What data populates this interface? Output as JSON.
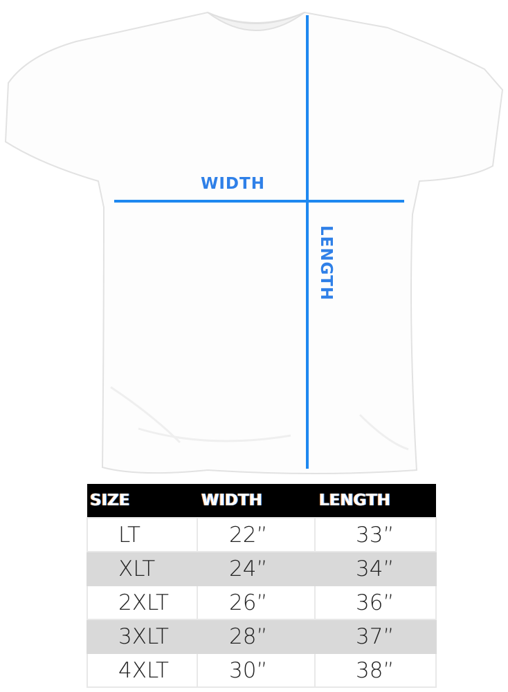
{
  "diagram": {
    "width_label": "WIDTH",
    "length_label": "LENGTH",
    "line_color": "#1e88f0"
  },
  "size_table": {
    "headers": [
      "SIZE",
      "WIDTH",
      "LENGTH"
    ],
    "rows": [
      [
        "LT",
        "22”",
        "33”"
      ],
      [
        "XLT",
        "24”",
        "34”"
      ],
      [
        "2XLT",
        "26”",
        "36”"
      ],
      [
        "3XLT",
        "28”",
        "37”"
      ],
      [
        "4XLT",
        "30”",
        "38”"
      ]
    ]
  }
}
